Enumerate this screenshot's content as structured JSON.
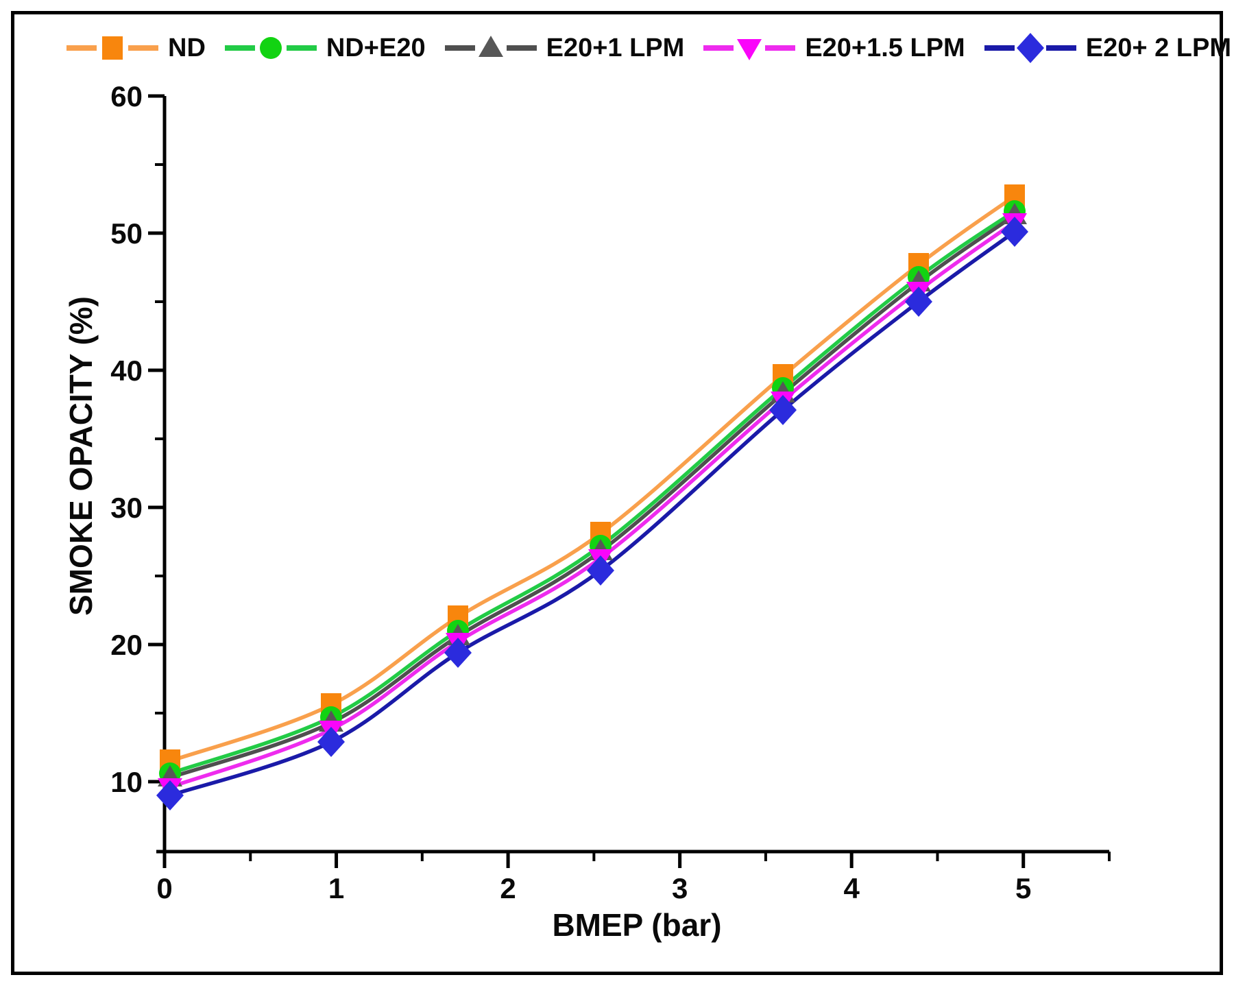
{
  "figure": {
    "background": "#ffffff",
    "border_color": "#000000"
  },
  "chart_data": {
    "type": "line",
    "title": "",
    "xlabel": "BMEP (bar)",
    "ylabel": "SMOKE OPACITY (%)",
    "xlim": [
      0,
      5.5
    ],
    "ylim": [
      4.9,
      60
    ],
    "x_ticks": [
      0,
      1,
      2,
      3,
      4,
      5
    ],
    "x_minor_ticks": [
      0.5,
      1.5,
      2.5,
      3.5,
      4.5,
      5.5
    ],
    "y_ticks": [
      10,
      20,
      30,
      40,
      50,
      60
    ],
    "y_minor_ticks": [
      15,
      25,
      35,
      45,
      55
    ],
    "grid": false,
    "legend_position": "top",
    "x": [
      0.03,
      0.97,
      1.71,
      2.54,
      3.6,
      4.39,
      4.95
    ],
    "series": [
      {
        "name": "ND",
        "marker": "square",
        "marker_color": "#F8860D",
        "line_color": "#F9A04C",
        "values": [
          11.5,
          15.6,
          22.0,
          28.1,
          39.6,
          47.7,
          52.7
        ]
      },
      {
        "name": "ND+E20",
        "marker": "circle",
        "marker_color": "#12D312",
        "line_color": "#22CB46",
        "values": [
          10.6,
          14.7,
          21.0,
          27.2,
          38.7,
          46.8,
          51.6
        ]
      },
      {
        "name": "E20+1 LPM",
        "marker": "triangle-up",
        "marker_color": "#575757",
        "line_color": "#4F4F4F",
        "values": [
          10.3,
          14.3,
          20.6,
          26.8,
          38.3,
          46.4,
          51.3
        ]
      },
      {
        "name": "E20+1.5 LPM",
        "marker": "triangle-down",
        "marker_color": "#FA05FA",
        "line_color": "#EE2BEE",
        "values": [
          9.6,
          13.8,
          20.2,
          26.3,
          37.8,
          45.8,
          50.8
        ]
      },
      {
        "name": "E20+ 2 LPM",
        "marker": "diamond",
        "marker_color": "#2B2BDD",
        "line_color": "#1A1AA8",
        "values": [
          9.0,
          12.9,
          19.4,
          25.4,
          37.1,
          45.0,
          50.1
        ]
      }
    ]
  }
}
